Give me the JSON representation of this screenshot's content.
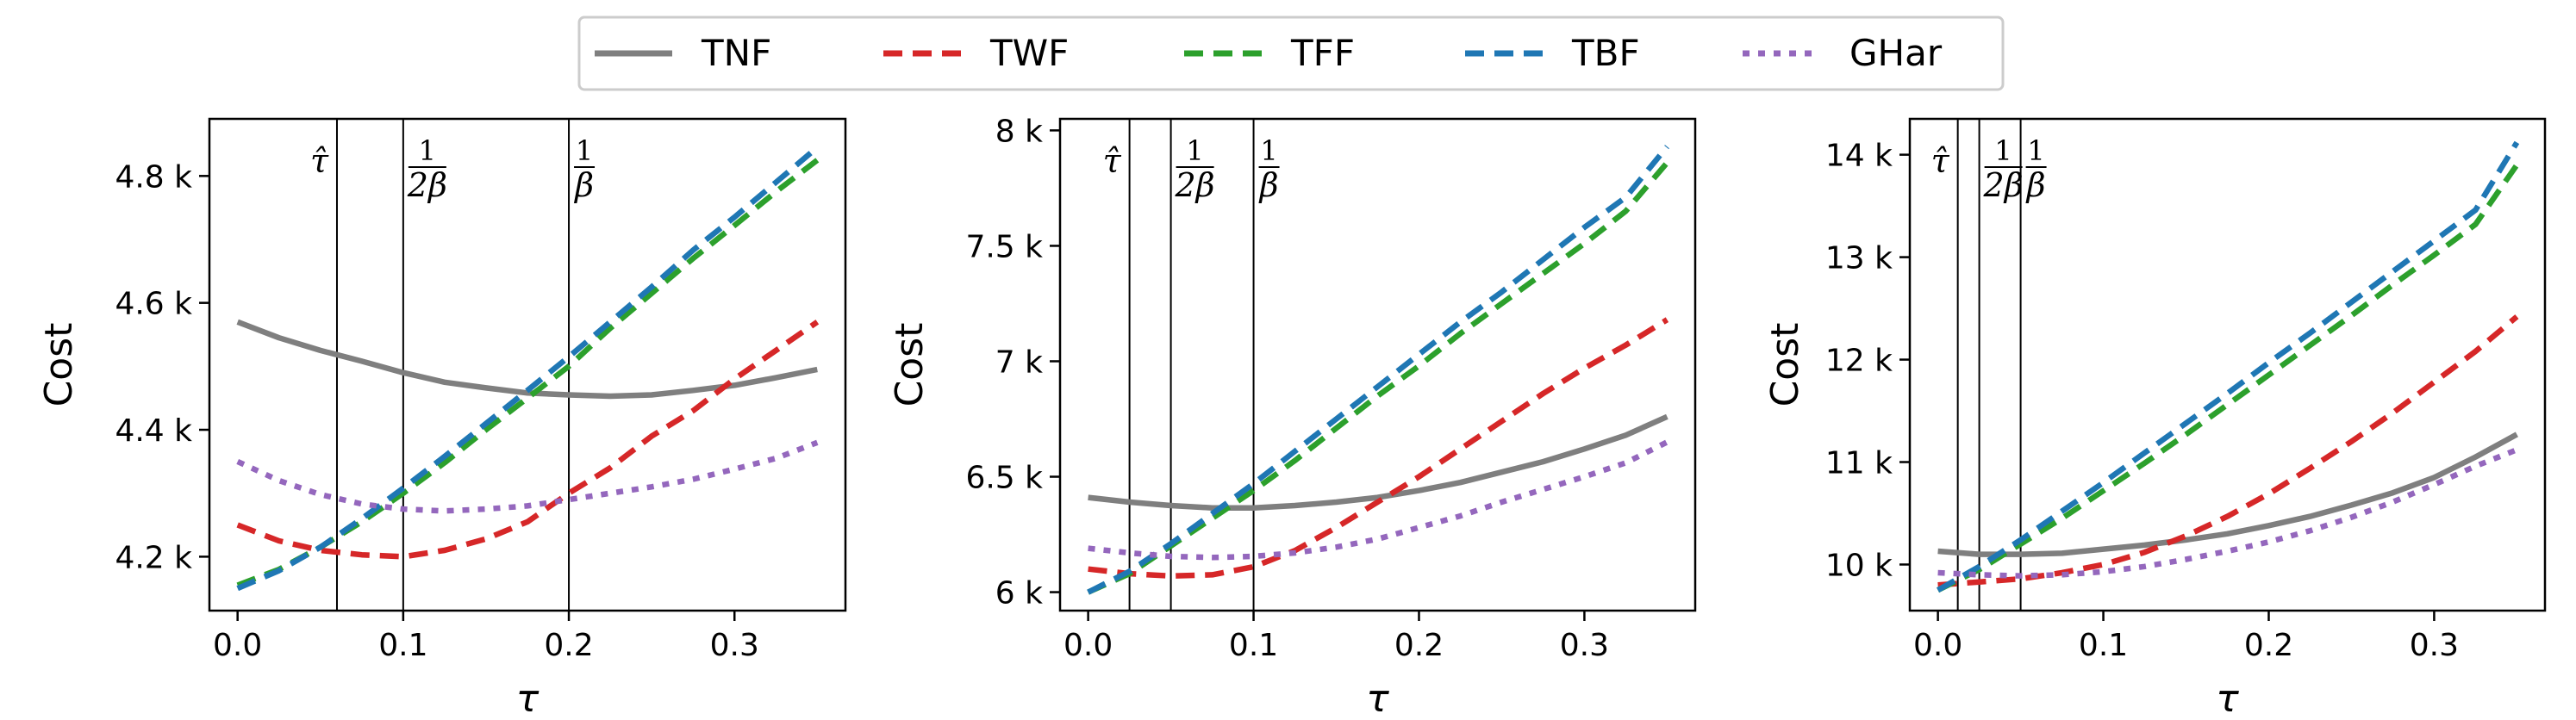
{
  "legend": [
    {
      "label": "TNF",
      "color": "#7f7f7f",
      "dash": "solid"
    },
    {
      "label": "TWF",
      "color": "#d62728",
      "dash": "dashed"
    },
    {
      "label": "TFF",
      "color": "#2ca02c",
      "dash": "dashed"
    },
    {
      "label": "TBF",
      "color": "#1f77b4",
      "dash": "dashed"
    },
    {
      "label": "GHar",
      "color": "#9467bd",
      "dash": "dotted"
    }
  ],
  "chart_data": [
    {
      "type": "line",
      "xlabel": "τ",
      "ylabel": "Cost",
      "xlim": [
        -0.017,
        0.367
      ],
      "ylim": [
        4115,
        4890
      ],
      "xticks": [
        0.0,
        0.1,
        0.2,
        0.3
      ],
      "xtick_labels": [
        "0.0",
        "0.1",
        "0.2",
        "0.3"
      ],
      "yticks": [
        4200,
        4400,
        4600,
        4800
      ],
      "ytick_labels": [
        "4.2 k",
        "4.4 k",
        "4.6 k",
        "4.8 k"
      ],
      "markers": [
        {
          "x": 0.06,
          "label": "τ̂",
          "kind": "hat"
        },
        {
          "x": 0.1,
          "num": "1",
          "den": "2β",
          "kind": "frac"
        },
        {
          "x": 0.2,
          "num": "1",
          "den": "β",
          "kind": "frac"
        }
      ],
      "series": [
        {
          "name": "TNF",
          "x": [
            0,
            0.025,
            0.05,
            0.075,
            0.1,
            0.125,
            0.15,
            0.175,
            0.2,
            0.225,
            0.25,
            0.275,
            0.3,
            0.325,
            0.35
          ],
          "y": [
            4570,
            4545,
            4525,
            4508,
            4490,
            4475,
            4466,
            4458,
            4455,
            4453,
            4455,
            4462,
            4470,
            4482,
            4495
          ]
        },
        {
          "name": "TWF",
          "x": [
            0,
            0.025,
            0.05,
            0.075,
            0.1,
            0.125,
            0.15,
            0.175,
            0.2,
            0.225,
            0.25,
            0.275,
            0.3,
            0.325,
            0.35
          ],
          "y": [
            4250,
            4225,
            4210,
            4203,
            4200,
            4210,
            4228,
            4255,
            4300,
            4340,
            4390,
            4430,
            4480,
            4525,
            4570
          ]
        },
        {
          "name": "TFF",
          "x": [
            0,
            0.025,
            0.05,
            0.075,
            0.1,
            0.125,
            0.15,
            0.175,
            0.2,
            0.225,
            0.25,
            0.275,
            0.3,
            0.325,
            0.35
          ],
          "y": [
            4155,
            4180,
            4215,
            4255,
            4300,
            4348,
            4400,
            4450,
            4500,
            4560,
            4615,
            4670,
            4722,
            4775,
            4825
          ]
        },
        {
          "name": "TBF",
          "x": [
            0,
            0.025,
            0.05,
            0.075,
            0.1,
            0.125,
            0.15,
            0.175,
            0.2,
            0.225,
            0.25,
            0.275,
            0.3,
            0.325,
            0.35
          ],
          "y": [
            4150,
            4178,
            4215,
            4260,
            4308,
            4358,
            4410,
            4462,
            4515,
            4570,
            4625,
            4683,
            4735,
            4790,
            4845
          ]
        },
        {
          "name": "GHar",
          "x": [
            0,
            0.025,
            0.05,
            0.075,
            0.1,
            0.125,
            0.15,
            0.175,
            0.2,
            0.225,
            0.25,
            0.275,
            0.3,
            0.325,
            0.35
          ],
          "y": [
            4350,
            4320,
            4298,
            4283,
            4275,
            4272,
            4275,
            4280,
            4290,
            4300,
            4310,
            4322,
            4338,
            4355,
            4380
          ]
        }
      ]
    },
    {
      "type": "line",
      "xlabel": "τ",
      "ylabel": "Cost",
      "xlim": [
        -0.017,
        0.367
      ],
      "ylim": [
        5920,
        8050
      ],
      "xticks": [
        0.0,
        0.1,
        0.2,
        0.3
      ],
      "xtick_labels": [
        "0.0",
        "0.1",
        "0.2",
        "0.3"
      ],
      "yticks": [
        6000,
        6500,
        7000,
        7500,
        8000
      ],
      "ytick_labels": [
        "6 k",
        "6.5 k",
        "7 k",
        "7.5 k",
        "8 k"
      ],
      "markers": [
        {
          "x": 0.025,
          "label": "τ̂",
          "kind": "hat"
        },
        {
          "x": 0.05,
          "num": "1",
          "den": "2β",
          "kind": "frac"
        },
        {
          "x": 0.1,
          "num": "1",
          "den": "β",
          "kind": "frac"
        }
      ],
      "series": [
        {
          "name": "TNF",
          "x": [
            0,
            0.025,
            0.05,
            0.075,
            0.1,
            0.125,
            0.15,
            0.175,
            0.2,
            0.225,
            0.25,
            0.275,
            0.3,
            0.325,
            0.35
          ],
          "y": [
            6410,
            6390,
            6375,
            6365,
            6365,
            6375,
            6390,
            6410,
            6440,
            6475,
            6520,
            6565,
            6620,
            6680,
            6760
          ]
        },
        {
          "name": "TWF",
          "x": [
            0,
            0.025,
            0.05,
            0.075,
            0.1,
            0.125,
            0.15,
            0.175,
            0.2,
            0.225,
            0.25,
            0.275,
            0.3,
            0.325,
            0.35
          ],
          "y": [
            6100,
            6080,
            6070,
            6075,
            6110,
            6180,
            6280,
            6390,
            6500,
            6620,
            6740,
            6860,
            6970,
            7070,
            7180
          ]
        },
        {
          "name": "TFF",
          "x": [
            0,
            0.025,
            0.05,
            0.075,
            0.1,
            0.125,
            0.15,
            0.175,
            0.2,
            0.225,
            0.25,
            0.275,
            0.3,
            0.325,
            0.35
          ],
          "y": [
            6000,
            6080,
            6200,
            6320,
            6440,
            6570,
            6710,
            6850,
            6980,
            7120,
            7250,
            7380,
            7510,
            7650,
            7860
          ]
        },
        {
          "name": "TBF",
          "x": [
            0,
            0.025,
            0.05,
            0.075,
            0.1,
            0.125,
            0.15,
            0.175,
            0.2,
            0.225,
            0.25,
            0.275,
            0.3,
            0.325,
            0.35
          ],
          "y": [
            6000,
            6090,
            6210,
            6340,
            6470,
            6610,
            6750,
            6890,
            7030,
            7170,
            7300,
            7440,
            7580,
            7710,
            7930
          ]
        },
        {
          "name": "GHar",
          "x": [
            0,
            0.025,
            0.05,
            0.075,
            0.1,
            0.125,
            0.15,
            0.175,
            0.2,
            0.225,
            0.25,
            0.275,
            0.3,
            0.325,
            0.35
          ],
          "y": [
            6190,
            6170,
            6155,
            6150,
            6155,
            6170,
            6195,
            6230,
            6280,
            6330,
            6390,
            6445,
            6500,
            6560,
            6650
          ]
        }
      ]
    },
    {
      "type": "line",
      "xlabel": "τ",
      "ylabel": "Cost",
      "xlim": [
        -0.017,
        0.367
      ],
      "ylim": [
        9550,
        14350
      ],
      "xticks": [
        0.0,
        0.1,
        0.2,
        0.3
      ],
      "xtick_labels": [
        "0.0",
        "0.1",
        "0.2",
        "0.3"
      ],
      "yticks": [
        10000,
        11000,
        12000,
        13000,
        14000
      ],
      "ytick_labels": [
        "10 k",
        "11 k",
        "12 k",
        "13 k",
        "14 k"
      ],
      "markers": [
        {
          "x": 0.012,
          "label": "τ̂",
          "kind": "hat"
        },
        {
          "x": 0.025,
          "num": "1",
          "den": "2β",
          "kind": "frac"
        },
        {
          "x": 0.05,
          "num": "1",
          "den": "β",
          "kind": "frac"
        }
      ],
      "series": [
        {
          "name": "TNF",
          "x": [
            0,
            0.025,
            0.05,
            0.075,
            0.1,
            0.125,
            0.15,
            0.175,
            0.2,
            0.225,
            0.25,
            0.275,
            0.3,
            0.325,
            0.35
          ],
          "y": [
            10130,
            10100,
            10100,
            10110,
            10150,
            10190,
            10240,
            10300,
            10380,
            10470,
            10580,
            10700,
            10850,
            11050,
            11270
          ]
        },
        {
          "name": "TWF",
          "x": [
            0,
            0.025,
            0.05,
            0.075,
            0.1,
            0.125,
            0.15,
            0.175,
            0.2,
            0.225,
            0.25,
            0.275,
            0.3,
            0.325,
            0.35
          ],
          "y": [
            9800,
            9830,
            9860,
            9920,
            10000,
            10120,
            10280,
            10470,
            10690,
            10940,
            11200,
            11480,
            11780,
            12080,
            12420
          ]
        },
        {
          "name": "TFF",
          "x": [
            0,
            0.025,
            0.05,
            0.075,
            0.1,
            0.125,
            0.15,
            0.175,
            0.2,
            0.225,
            0.25,
            0.275,
            0.3,
            0.325,
            0.35
          ],
          "y": [
            9750,
            9950,
            10200,
            10450,
            10720,
            10990,
            11270,
            11560,
            11850,
            12140,
            12430,
            12730,
            13020,
            13320,
            13900
          ]
        },
        {
          "name": "TBF",
          "x": [
            0,
            0.025,
            0.05,
            0.075,
            0.1,
            0.125,
            0.15,
            0.175,
            0.2,
            0.225,
            0.25,
            0.275,
            0.3,
            0.325,
            0.35
          ],
          "y": [
            9750,
            9980,
            10240,
            10520,
            10800,
            11090,
            11380,
            11670,
            11970,
            12260,
            12560,
            12860,
            13160,
            13460,
            14120
          ]
        },
        {
          "name": "GHar",
          "x": [
            0,
            0.025,
            0.05,
            0.075,
            0.1,
            0.125,
            0.15,
            0.175,
            0.2,
            0.225,
            0.25,
            0.275,
            0.3,
            0.325,
            0.35
          ],
          "y": [
            9920,
            9900,
            9890,
            9900,
            9930,
            9980,
            10050,
            10130,
            10220,
            10330,
            10460,
            10610,
            10780,
            10960,
            11120
          ]
        }
      ]
    }
  ]
}
